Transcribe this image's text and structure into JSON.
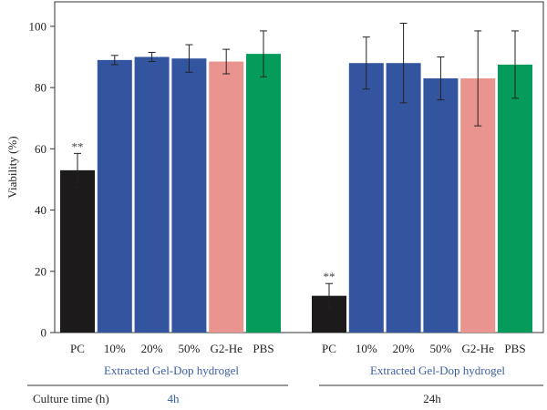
{
  "chart_data": {
    "type": "bar",
    "ylabel": "Viability (%)",
    "ylim": [
      0,
      108
    ],
    "yticks": [
      0,
      20,
      40,
      60,
      80,
      100
    ],
    "grid": false,
    "groups": [
      {
        "time_label": "4h",
        "caption": "Extracted Gel-Dop hydrogel",
        "bars": [
          {
            "label": "PC",
            "value": 53,
            "error": 5.5,
            "color": "#1c1a1a",
            "annotation": "**"
          },
          {
            "label": "10%",
            "value": 89,
            "error": 1.5,
            "color": "#33559f"
          },
          {
            "label": "20%",
            "value": 90,
            "error": 1.5,
            "color": "#33559f"
          },
          {
            "label": "50%",
            "value": 89.5,
            "error": 4.5,
            "color": "#33559f"
          },
          {
            "label": "G2-He",
            "value": 88.5,
            "error": 4,
            "color": "#e9948e"
          },
          {
            "label": "PBS",
            "value": 91,
            "error": 7.5,
            "color": "#049b5b"
          }
        ]
      },
      {
        "time_label": "24h",
        "caption": "Extracted Gel-Dop hydrogel",
        "bars": [
          {
            "label": "PC",
            "value": 12,
            "error": 4,
            "color": "#1c1a1a",
            "annotation": "**"
          },
          {
            "label": "10%",
            "value": 88,
            "error": 8.5,
            "color": "#33559f"
          },
          {
            "label": "20%",
            "value": 88,
            "error": 13,
            "color": "#33559f"
          },
          {
            "label": "50%",
            "value": 83,
            "error": 7,
            "color": "#33559f"
          },
          {
            "label": "G2-He",
            "value": 83,
            "error": 15.5,
            "color": "#e9948e"
          },
          {
            "label": "PBS",
            "value": 87.5,
            "error": 11,
            "color": "#049b5b"
          }
        ]
      }
    ],
    "row_label": "Culture time (h)"
  }
}
